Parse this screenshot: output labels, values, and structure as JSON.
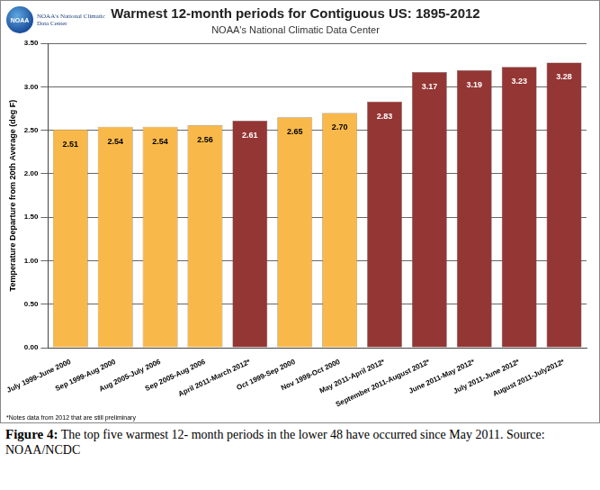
{
  "chart_data": {
    "type": "bar",
    "title": "Warmest 12-month periods for Contiguous US: 1895-2012",
    "subtitle": "NOAA's National Climatic Data Center",
    "y_label": "Temperature Departure from 20th Average (deg F)",
    "categories": [
      "July 1999-June 2000",
      "Sep 1999-Aug 2000",
      "Aug 2005-July 2006",
      "Sep 2005-Aug 2006",
      "April 2011-March 2012*",
      "Oct 1999-Sep 2000",
      "Nov 1999-Oct 2000",
      "May 2011-April 2012*",
      "September 2011-August 2012*",
      "June 2011-May 2012*",
      "July 2011-June 2012*",
      "August 2011-July2012*"
    ],
    "values": [
      2.51,
      2.54,
      2.54,
      2.56,
      2.61,
      2.65,
      2.7,
      2.83,
      3.17,
      3.19,
      3.23,
      3.28
    ],
    "value_labels": [
      "2.51",
      "2.54",
      "2.54",
      "2.56",
      "2.61",
      "2.65",
      "2.70",
      "2.83",
      "3.17",
      "3.19",
      "3.23",
      "3.28"
    ],
    "colors": [
      "#f9b94a",
      "#f9b94a",
      "#f9b94a",
      "#f9b94a",
      "#943634",
      "#f9b94a",
      "#f9b94a",
      "#943634",
      "#943634",
      "#943634",
      "#943634",
      "#943634"
    ],
    "ylim": [
      0,
      3.5
    ],
    "yticks": [
      {
        "value": 0,
        "label": "0.00"
      },
      {
        "value": 0.5,
        "label": "0.50"
      },
      {
        "value": 1,
        "label": "1.00"
      },
      {
        "value": 1.5,
        "label": "1.50"
      },
      {
        "value": 2,
        "label": "2.00"
      },
      {
        "value": 2.5,
        "label": "2.50"
      },
      {
        "value": 3,
        "label": "3.00"
      },
      {
        "value": 3.5,
        "label": "3.50"
      }
    ],
    "grid": true,
    "data_labels": true,
    "note": "*Notes data from 2012 that are still preliminary"
  },
  "figure": {
    "logo_text": "NOAA",
    "logo_caption": "NOAA's National Climatic Data Center",
    "caption_label": "Figure 4:",
    "caption_text": "The top five warmest 12- month periods in the lower 48 have occurred since May 2011. Source: NOAA/NCDC"
  }
}
